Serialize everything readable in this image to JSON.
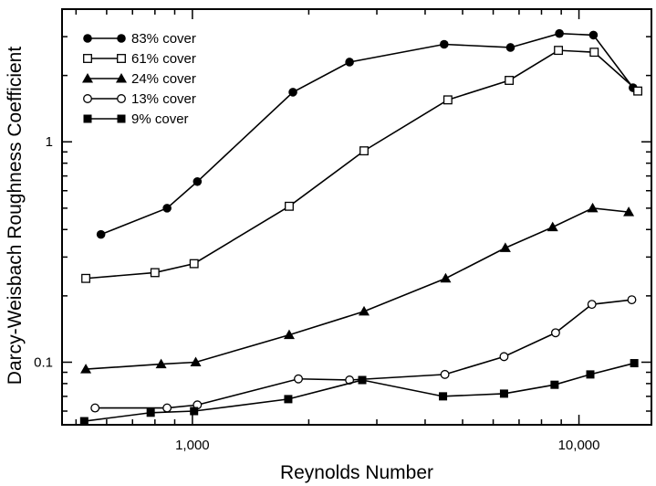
{
  "chart_data": {
    "type": "line",
    "xlabel": "Reynolds Number",
    "ylabel": "Darcy-Weisbach Roughness Coefficient",
    "xscale": "log",
    "yscale": "log",
    "xlim": [
      460,
      15400
    ],
    "ylim": [
      0.052,
      4.0
    ],
    "x_ticks": [
      {
        "value": 1000,
        "label": "1,000"
      },
      {
        "value": 10000,
        "label": "10,000"
      }
    ],
    "y_ticks": [
      {
        "value": 0.1,
        "label": "0.1"
      },
      {
        "value": 1,
        "label": "1"
      }
    ],
    "legend_position": "top-left",
    "grid": false,
    "series": [
      {
        "name": "83% cover",
        "marker": "circle-filled",
        "x": [
          580,
          860,
          1030,
          1820,
          2550,
          4480,
          6650,
          8900,
          10900,
          13800
        ],
        "y": [
          0.38,
          0.5,
          0.66,
          1.68,
          2.3,
          2.77,
          2.68,
          3.1,
          3.05,
          1.76
        ]
      },
      {
        "name": "61% cover",
        "marker": "square-open",
        "x": [
          530,
          800,
          1010,
          1780,
          2780,
          4580,
          6600,
          8850,
          10950,
          14200
        ],
        "y": [
          0.24,
          0.255,
          0.28,
          0.51,
          0.91,
          1.55,
          1.9,
          2.6,
          2.55,
          1.7
        ]
      },
      {
        "name": "24% cover",
        "marker": "triangle-filled",
        "x": [
          530,
          830,
          1020,
          1780,
          2780,
          4520,
          6450,
          8550,
          10850,
          13450
        ],
        "y": [
          0.093,
          0.098,
          0.1,
          0.133,
          0.17,
          0.24,
          0.33,
          0.41,
          0.5,
          0.48
        ]
      },
      {
        "name": "13% cover",
        "marker": "circle-open",
        "x": [
          560,
          860,
          1030,
          1880,
          2550,
          4500,
          6400,
          8700,
          10800,
          13700
        ],
        "y": [
          0.062,
          0.062,
          0.064,
          0.084,
          0.083,
          0.088,
          0.106,
          0.136,
          0.183,
          0.192
        ]
      },
      {
        "name": "9% cover",
        "marker": "square-filled",
        "x": [
          525,
          780,
          1010,
          1770,
          2750,
          4450,
          6400,
          8650,
          10700,
          13900
        ],
        "y": [
          0.054,
          0.059,
          0.06,
          0.068,
          0.083,
          0.07,
          0.072,
          0.079,
          0.088,
          0.099
        ]
      }
    ]
  }
}
